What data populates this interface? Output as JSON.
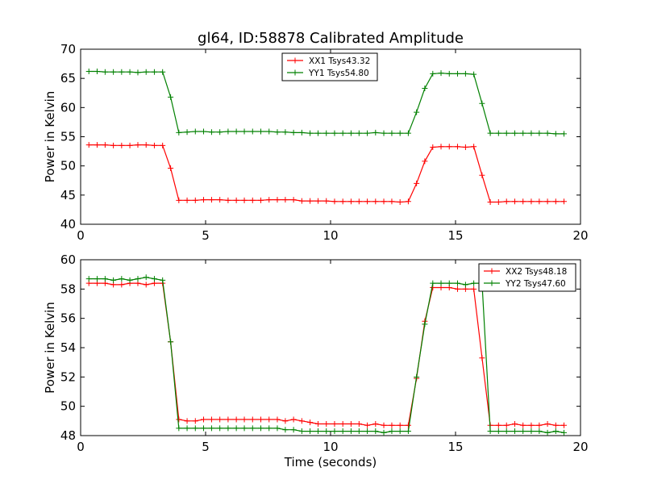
{
  "figure": {
    "title": "gl64, ID:58878 Calibrated Amplitude",
    "xlabel": "Time (seconds)"
  },
  "chart_data": [
    {
      "type": "line",
      "ylabel": "Power in Kelvin",
      "xlim": [
        0,
        20
      ],
      "ylim": [
        40,
        70
      ],
      "xticks": [
        0,
        5,
        10,
        15,
        20
      ],
      "yticks": [
        40,
        45,
        50,
        55,
        60,
        65,
        70
      ],
      "grid": false,
      "legend": "top-center",
      "x": [
        0.33,
        0.66,
        0.98,
        1.31,
        1.64,
        1.97,
        2.29,
        2.62,
        2.95,
        3.28,
        3.6,
        3.93,
        4.26,
        4.59,
        4.92,
        5.24,
        5.57,
        5.9,
        6.23,
        6.55,
        6.88,
        7.21,
        7.54,
        7.87,
        8.19,
        8.52,
        8.85,
        9.18,
        9.5,
        9.83,
        10.16,
        10.49,
        10.82,
        11.14,
        11.47,
        11.8,
        12.13,
        12.45,
        12.78,
        13.11,
        13.44,
        13.77,
        14.09,
        14.42,
        14.75,
        15.08,
        15.4,
        15.73,
        16.06,
        16.39,
        16.72,
        17.04,
        17.37,
        17.7,
        18.03,
        18.35,
        18.68,
        19.01,
        19.34
      ],
      "series": [
        {
          "name": "XX1 Tsys43.32",
          "color": "#ff0000",
          "values": [
            53.6,
            53.6,
            53.6,
            53.5,
            53.5,
            53.5,
            53.6,
            53.6,
            53.5,
            53.5,
            49.6,
            44.1,
            44.1,
            44.1,
            44.2,
            44.2,
            44.2,
            44.1,
            44.1,
            44.1,
            44.1,
            44.1,
            44.2,
            44.2,
            44.2,
            44.2,
            44.0,
            44.0,
            44.0,
            44.0,
            43.9,
            43.9,
            43.9,
            43.9,
            43.9,
            43.9,
            43.9,
            43.9,
            43.8,
            43.9,
            47.0,
            50.8,
            53.2,
            53.3,
            53.3,
            53.3,
            53.2,
            53.3,
            48.4,
            43.8,
            43.8,
            43.9,
            43.9,
            43.9,
            43.9,
            43.9,
            43.9,
            43.9,
            43.9
          ]
        },
        {
          "name": "YY1 Tsys54.80",
          "color": "#008000",
          "values": [
            66.2,
            66.2,
            66.1,
            66.1,
            66.1,
            66.1,
            66.0,
            66.1,
            66.1,
            66.1,
            61.8,
            55.7,
            55.8,
            55.9,
            55.9,
            55.8,
            55.8,
            55.9,
            55.9,
            55.9,
            55.9,
            55.9,
            55.9,
            55.8,
            55.8,
            55.7,
            55.7,
            55.6,
            55.6,
            55.6,
            55.6,
            55.6,
            55.6,
            55.6,
            55.6,
            55.7,
            55.6,
            55.6,
            55.6,
            55.6,
            59.2,
            63.3,
            65.8,
            65.9,
            65.8,
            65.8,
            65.8,
            65.7,
            60.7,
            55.6,
            55.6,
            55.6,
            55.6,
            55.6,
            55.6,
            55.6,
            55.6,
            55.5,
            55.5
          ]
        }
      ]
    },
    {
      "type": "line",
      "ylabel": "Power in Kelvin",
      "xlabel": "Time (seconds)",
      "xlim": [
        0,
        20
      ],
      "ylim": [
        48,
        60
      ],
      "xticks": [
        0,
        5,
        10,
        15,
        20
      ],
      "yticks": [
        48,
        50,
        52,
        54,
        56,
        58,
        60
      ],
      "grid": false,
      "legend": "top-right",
      "x": [
        0.33,
        0.66,
        0.98,
        1.31,
        1.64,
        1.97,
        2.29,
        2.62,
        2.95,
        3.28,
        3.6,
        3.93,
        4.26,
        4.59,
        4.92,
        5.24,
        5.57,
        5.9,
        6.23,
        6.55,
        6.88,
        7.21,
        7.54,
        7.87,
        8.19,
        8.52,
        8.85,
        9.18,
        9.5,
        9.83,
        10.16,
        10.49,
        10.82,
        11.14,
        11.47,
        11.8,
        12.13,
        12.45,
        12.78,
        13.11,
        13.44,
        13.77,
        14.09,
        14.42,
        14.75,
        15.08,
        15.4,
        15.73,
        16.06,
        16.39,
        16.72,
        17.04,
        17.37,
        17.7,
        18.03,
        18.35,
        18.68,
        19.01,
        19.34
      ],
      "series": [
        {
          "name": "XX2 Tsys48.18",
          "color": "#ff0000",
          "values": [
            58.4,
            58.4,
            58.4,
            58.3,
            58.3,
            58.4,
            58.4,
            58.3,
            58.4,
            58.4,
            54.4,
            49.1,
            49.0,
            49.0,
            49.1,
            49.1,
            49.1,
            49.1,
            49.1,
            49.1,
            49.1,
            49.1,
            49.1,
            49.1,
            49.0,
            49.1,
            49.0,
            48.9,
            48.8,
            48.8,
            48.8,
            48.8,
            48.8,
            48.8,
            48.7,
            48.8,
            48.7,
            48.7,
            48.7,
            48.7,
            51.9,
            55.8,
            58.1,
            58.1,
            58.1,
            58.0,
            58.0,
            58.0,
            53.3,
            48.7,
            48.7,
            48.7,
            48.8,
            48.7,
            48.7,
            48.7,
            48.8,
            48.7,
            48.7
          ]
        },
        {
          "name": "YY2 Tsys47.60",
          "color": "#008000",
          "values": [
            58.7,
            58.7,
            58.7,
            58.6,
            58.7,
            58.6,
            58.7,
            58.8,
            58.7,
            58.6,
            54.4,
            48.5,
            48.5,
            48.5,
            48.5,
            48.5,
            48.5,
            48.5,
            48.5,
            48.5,
            48.5,
            48.5,
            48.5,
            48.5,
            48.4,
            48.4,
            48.3,
            48.3,
            48.3,
            48.3,
            48.3,
            48.3,
            48.3,
            48.3,
            48.3,
            48.3,
            48.2,
            48.3,
            48.3,
            48.3,
            52.0,
            55.6,
            58.4,
            58.4,
            58.4,
            58.4,
            58.3,
            58.4,
            58.4,
            48.3,
            48.3,
            48.3,
            48.3,
            48.3,
            48.3,
            48.3,
            48.2,
            48.3,
            48.2
          ]
        }
      ]
    }
  ]
}
